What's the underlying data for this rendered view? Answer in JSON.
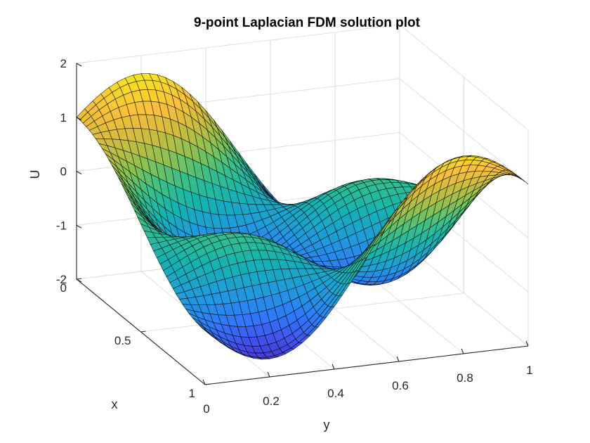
{
  "window": {
    "background": "#ffffff"
  },
  "chart_data": {
    "type": "surface",
    "title": "9-point Laplacian FDM solution plot",
    "xlabel": "x",
    "ylabel": "y",
    "zlabel": "U",
    "xlim": [
      0,
      1
    ],
    "ylim": [
      0,
      1
    ],
    "zlim": [
      -2,
      2
    ],
    "xticks": [
      0,
      0.5,
      1
    ],
    "xtick_labels": [
      "0",
      "0.5",
      "1"
    ],
    "yticks": [
      0,
      0.2,
      0.4,
      0.6,
      0.8,
      1
    ],
    "ytick_labels": [
      "0",
      "0.2",
      "0.4",
      "0.6",
      "0.8",
      "1"
    ],
    "zticks": [
      -2,
      -1,
      0,
      1,
      2
    ],
    "ztick_labels": [
      "-2",
      "-1",
      "0",
      "1",
      "2"
    ],
    "grid": true,
    "box": true,
    "mesh": {
      "nx": 40,
      "ny": 40,
      "edge_color": "#000000"
    },
    "colormap": "parula",
    "colormap_stops": [
      "#3e26a8",
      "#4744e2",
      "#3077fb",
      "#1d9cdc",
      "#11b4b2",
      "#36c08a",
      "#8bc150",
      "#cdbc3b",
      "#fcc038",
      "#f6e21a",
      "#f9fb0e"
    ],
    "sample_values": [
      {
        "x": 0,
        "y": 0,
        "U": 1
      },
      {
        "x": 0,
        "y": 1,
        "U": -1
      },
      {
        "x": 1,
        "y": 0,
        "U": -1
      },
      {
        "x": 1,
        "y": 1,
        "U": 1
      },
      {
        "x": 0.5,
        "y": 0.5,
        "U": 0
      },
      {
        "x": 0.25,
        "y": 0.4,
        "U": 1.8
      },
      {
        "x": 0.95,
        "y": 0.5,
        "U": -1.9
      }
    ]
  }
}
